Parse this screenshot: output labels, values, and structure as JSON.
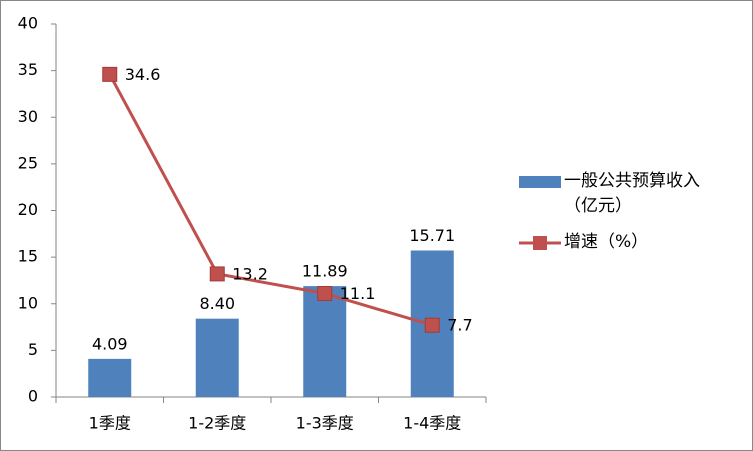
{
  "chart_data": {
    "type": "combo",
    "categories": [
      "1季度",
      "1-2季度",
      "1-3季度",
      "1-4季度"
    ],
    "series": [
      {
        "name": "一般公共预算收入（亿元）",
        "type": "bar",
        "color": "#4f81bd",
        "values": [
          4.09,
          8.4,
          11.89,
          15.71
        ],
        "value_labels": [
          "4.09",
          "8.40",
          "11.89",
          "15.71"
        ]
      },
      {
        "name": "增速（%）",
        "type": "line",
        "color": "#c0504d",
        "values": [
          34.6,
          13.2,
          11.1,
          7.7
        ]
      }
    ],
    "ylim": [
      0,
      40
    ],
    "yticks": [
      0,
      5,
      10,
      15,
      20,
      25,
      30,
      35,
      40
    ],
    "grid": false,
    "legend": "right"
  }
}
